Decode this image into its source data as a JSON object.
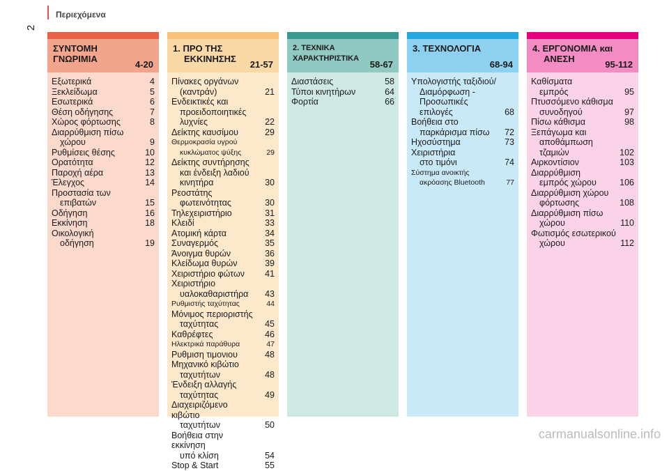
{
  "page_number": "2",
  "header_title": "Περιεχόμενα",
  "columns": [
    {
      "title_line1": "ΣΥΝΤΟΜΗ",
      "title_line2": "ΓΝΩΡΙΜΙΑ",
      "range": "4-20",
      "band_color": "#e8624a",
      "head_color": "#f3a48c",
      "body_color": "#fbd9cc",
      "items": [
        {
          "line1": "Εξωτερικά",
          "line2": "",
          "page": "4"
        },
        {
          "line1": "Ξεκλείδωμα",
          "line2": "",
          "page": "5"
        },
        {
          "line1": "Εσωτερικά",
          "line2": "",
          "page": "6"
        },
        {
          "line1": "Θέση οδήγησης",
          "line2": "",
          "page": "7"
        },
        {
          "line1": "Χώρος φόρτωσης",
          "line2": "",
          "page": "8"
        },
        {
          "line1": "Διαρρύθμιση πίσω",
          "line2": "χώρου",
          "page": "9"
        },
        {
          "line1": "Ρυθμίσεις θέσης",
          "line2": "",
          "page": "10"
        },
        {
          "line1": "Ορατότητα",
          "line2": "",
          "page": "12"
        },
        {
          "line1": "Παροχή αέρα",
          "line2": "",
          "page": "13"
        },
        {
          "line1": "Έλεγχος",
          "line2": "",
          "page": "14"
        },
        {
          "line1": "Προστασία των",
          "line2": "επιβατών",
          "page": "15"
        },
        {
          "line1": "Οδήγηση",
          "line2": "",
          "page": "16"
        },
        {
          "line1": "Εκκίνηση",
          "line2": "",
          "page": "18"
        },
        {
          "line1": "Οικολογική",
          "line2": "οδήγηση",
          "page": "19"
        }
      ]
    },
    {
      "title_line1": "1. ΠΡΟ ΤΗΣ",
      "title_line2": "ΕΚΚΙΝΗΣΗΣ",
      "range": "21-57",
      "band_color": "#f6c17a",
      "head_color": "#fbd9a6",
      "body_color": "#fde8cc",
      "items": [
        {
          "line1": "Πίνακες οργάνων",
          "line2": "(καντράν)",
          "page": "21"
        },
        {
          "line1": "Ενδεικτικές και",
          "line2": "προειδοποιητικές λυχνίες",
          "page": "22"
        },
        {
          "line1": "Δείκτης καυσίμου",
          "line2": "",
          "page": "29"
        },
        {
          "line1": "Θερμοκρασία υγρού",
          "line2": "κυκλώματος ψύξης",
          "page": "29",
          "small": true
        },
        {
          "line1": "Δείκτης συντήρησης",
          "line2": "και ένδειξη λαδιού κινητήρα",
          "page": "30"
        },
        {
          "line1": "Ρεοστάτης",
          "line2": "φωτεινότητας",
          "page": "30"
        },
        {
          "line1": "Τηλεχειριστήριο",
          "line2": "",
          "page": "31"
        },
        {
          "line1": "Κλειδί",
          "line2": "",
          "page": "33"
        },
        {
          "line1": "Ατομική κάρτα",
          "line2": "",
          "page": "34"
        },
        {
          "line1": "Συναγερμός",
          "line2": "",
          "page": "35"
        },
        {
          "line1": "Άνοιγμα θυρών",
          "line2": "",
          "page": "36"
        },
        {
          "line1": "Κλείδωμα θυρών",
          "line2": "",
          "page": "39"
        },
        {
          "line1": "Χειριστήριο φώτων",
          "line2": "",
          "page": "41"
        },
        {
          "line1": "Χειριστήριο",
          "line2": "υαλοκαθαριστήρα",
          "page": "43"
        },
        {
          "line1": "Ρυθμιστής ταχύτητας",
          "line2": "",
          "page": "44",
          "small": true
        },
        {
          "line1": "Μόνιμος περιοριστής",
          "line2": "ταχύτητας",
          "page": "45"
        },
        {
          "line1": "Καθρέφτες",
          "line2": "",
          "page": "46"
        },
        {
          "line1": "Ηλεκτρικά παράθυρα",
          "line2": "",
          "page": "47",
          "small": true
        },
        {
          "line1": "Ρυθμιση τιμονιου",
          "line2": "",
          "page": "48"
        },
        {
          "line1": "Μηχανικό κιβώτιο",
          "line2": "ταχυτήτων",
          "page": "48"
        },
        {
          "line1": "Ένδειξη αλλαγής",
          "line2": "ταχύτητας",
          "page": "49"
        },
        {
          "line1": "Διαχειριζόμενο κιβώτιο",
          "line2": "ταχυτήτων",
          "page": "50"
        },
        {
          "line1": "Βοήθεια στην εκκίνηση",
          "line2": "υπό κλίση",
          "page": "54"
        },
        {
          "line1": "Stop & Start",
          "line2": "",
          "page": "55"
        }
      ]
    },
    {
      "title_line1": "2. ΤΕΧΝΙΚΑ ΧΑΡΑΚΤΗΡΙΣΤΙΚΑ",
      "title_line2": "",
      "range": "58-67",
      "band_color": "#3a9a92",
      "head_color": "#8fc9c2",
      "body_color": "#cfe8e3",
      "items": [
        {
          "line1": "Διαστάσεις",
          "line2": "",
          "page": "58"
        },
        {
          "line1": "Τύποι κινητήρων",
          "line2": "",
          "page": "64"
        },
        {
          "line1": "Φορτία",
          "line2": "",
          "page": "66"
        }
      ]
    },
    {
      "title_line1": "3. ΤΕΧΝΟΛΟΓΙΑ",
      "title_line2": "",
      "range": "68-94",
      "band_color": "#27a7e0",
      "head_color": "#8dd0ef",
      "body_color": "#c9e9f8",
      "items": [
        {
          "line1": "Υπολογιστής ταξιδιού/",
          "line2": "Διαμόρφωση - Προσωπικές επιλογές",
          "page": "68"
        },
        {
          "line1": "Βοήθεια στο",
          "line2": "παρκάρισμα πίσω",
          "page": "72"
        },
        {
          "line1": "Ηχοσύστημα",
          "line2": "",
          "page": "73"
        },
        {
          "line1": "Χειριστήρια",
          "line2": "στο τιμόνι",
          "page": "74"
        },
        {
          "line1": "Σύστημα ανοικτής",
          "line2": "ακρόασης Bluetooth",
          "page": "77",
          "small": true
        }
      ]
    },
    {
      "title_line1": "4. ΕΡΓΟΝΟΜΙΑ και",
      "title_line2": "ΑΝΕΣΗ",
      "range": "95-112",
      "band_color": "#e6007e",
      "head_color": "#f28cc2",
      "body_color": "#fbd3e8",
      "items": [
        {
          "line1": "Καθίσματα",
          "line2": "εμπρός",
          "page": "95"
        },
        {
          "line1": "Πτυσσόμενο κάθισμα",
          "line2": "συνοδηγού",
          "page": "97"
        },
        {
          "line1": "Πίσω κάθισμα",
          "line2": "",
          "page": "98"
        },
        {
          "line1": "Ξεπάγωμα και",
          "line2": "αποθάμπωση τζαμιών",
          "page": "102"
        },
        {
          "line1": "Αιρκοντίσιον",
          "line2": "",
          "page": "103"
        },
        {
          "line1": "Διαρρύθμιση",
          "line2": "εμπρός χώρου",
          "page": "106"
        },
        {
          "line1": "Διαρρύθμιση χώρου",
          "line2": "φόρτωσης",
          "page": "108"
        },
        {
          "line1": "Διαρρύθμιση πίσω",
          "line2": "χώρου",
          "page": "110"
        },
        {
          "line1": "Φωτισμός εσωτερικού",
          "line2": "χώρου",
          "page": "112"
        }
      ]
    }
  ],
  "watermark": "carmanualsonline.info"
}
